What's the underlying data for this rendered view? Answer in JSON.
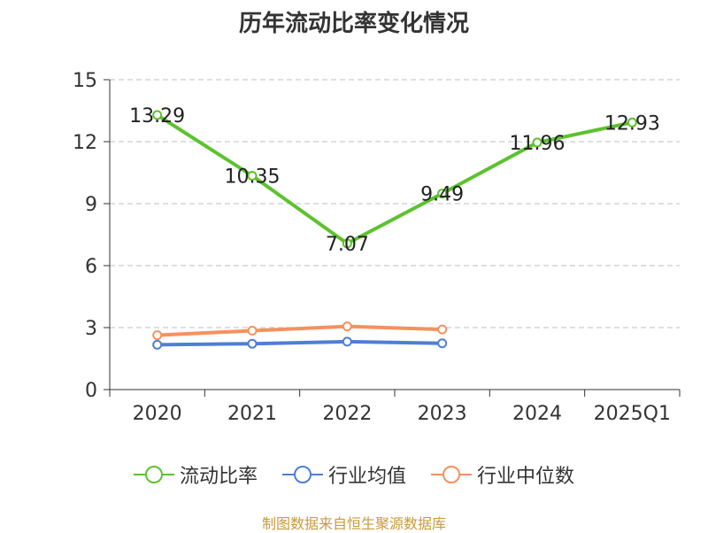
{
  "chart_data": {
    "type": "line",
    "title": "历年流动比率变化情况",
    "categories": [
      "2020",
      "2021",
      "2022",
      "2023",
      "2024",
      "2025Q1"
    ],
    "ylim": [
      0,
      15
    ],
    "yticks": [
      0,
      3,
      6,
      9,
      12,
      15
    ],
    "grid": true,
    "legend_position": "bottom",
    "series": [
      {
        "name": "流动比率",
        "color": "#5cc22e",
        "values": [
          13.29,
          10.35,
          7.07,
          9.49,
          11.96,
          12.93
        ],
        "labels": [
          "13.29",
          "10.35",
          "7.07",
          "9.49",
          "11.96",
          "12.93"
        ]
      },
      {
        "name": "行业均值",
        "color": "#4e7fd6",
        "values": [
          2.17,
          2.22,
          2.32,
          2.24,
          null,
          null
        ]
      },
      {
        "name": "行业中位数",
        "color": "#f5915f",
        "values": [
          2.63,
          2.85,
          3.06,
          2.91,
          null,
          null
        ]
      }
    ]
  },
  "source": "制图数据来自恒生聚源数据库"
}
